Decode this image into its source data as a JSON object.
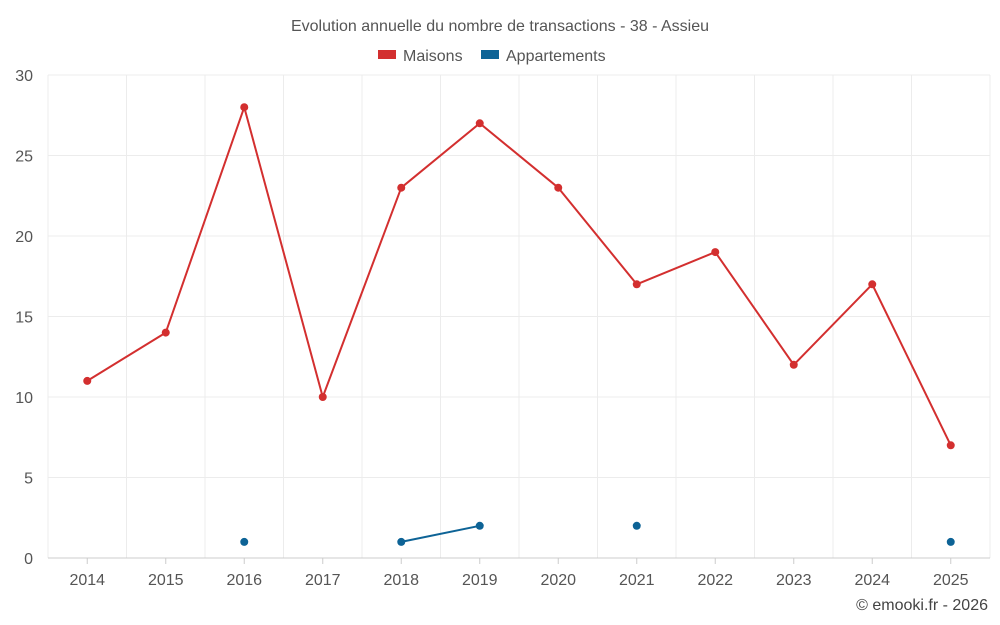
{
  "chart_data": {
    "type": "line",
    "title": "Evolution annuelle du nombre de transactions - 38 - Assieu",
    "categories": [
      "2014",
      "2015",
      "2016",
      "2017",
      "2018",
      "2019",
      "2020",
      "2021",
      "2022",
      "2023",
      "2024",
      "2025"
    ],
    "ylim": [
      0,
      30
    ],
    "yticks": [
      0,
      5,
      10,
      15,
      20,
      25,
      30
    ],
    "grid": true,
    "legend_position": "top-center",
    "xlabel": "",
    "ylabel": "",
    "series": [
      {
        "name": "Maisons",
        "color": "#d32f2f",
        "values": [
          11,
          14,
          28,
          10,
          23,
          27,
          23,
          17,
          19,
          12,
          17,
          7
        ]
      },
      {
        "name": "Appartements",
        "color": "#0d6396",
        "values": [
          null,
          null,
          1,
          null,
          1,
          2,
          null,
          2,
          null,
          null,
          null,
          1
        ]
      }
    ]
  },
  "credit": "© emooki.fr - 2026"
}
